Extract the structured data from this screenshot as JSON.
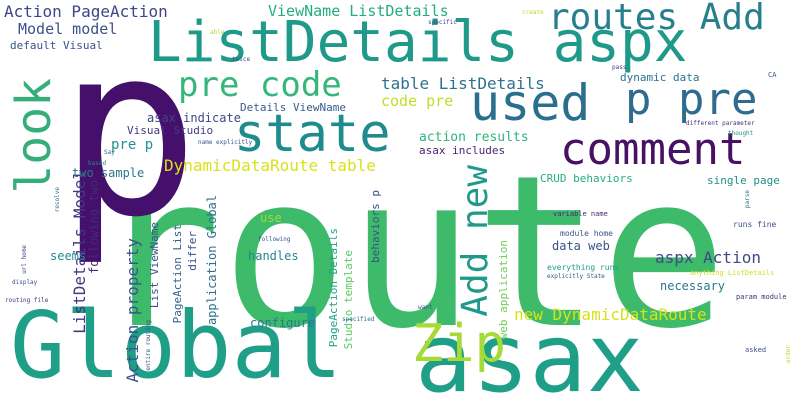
{
  "words": [
    {
      "text": "route",
      "color": "#3dbb6b"
    },
    {
      "text": "p",
      "color": "#44106b"
    },
    {
      "text": "Global",
      "color": "#1f9f88"
    },
    {
      "text": "asax",
      "color": "#1f9f88"
    },
    {
      "text": "ListDetails aspx",
      "color": "#1f9a8a"
    },
    {
      "text": "state",
      "color": "#1e8c8d"
    },
    {
      "text": "used",
      "color": "#2b6f8e"
    },
    {
      "text": "p pre",
      "color": "#2f6b8e"
    },
    {
      "text": "comment",
      "color": "#471164"
    },
    {
      "text": "routes Add",
      "color": "#277f8e"
    },
    {
      "text": "look",
      "color": "#36ae79"
    },
    {
      "text": "pre code",
      "color": "#35b779"
    },
    {
      "text": "Zip",
      "color": "#a5db36"
    },
    {
      "text": "Add new",
      "color": "#1f9a8a"
    },
    {
      "text": "Action PageAction",
      "color": "#414487"
    },
    {
      "text": "Model model",
      "color": "#3b518b"
    },
    {
      "text": "default Visual",
      "color": "#3b528b"
    },
    {
      "text": "ViewName ListDetails",
      "color": "#25ab82"
    },
    {
      "text": "table ListDetails",
      "color": "#2c728e"
    },
    {
      "text": "code pre",
      "color": "#bddf26"
    },
    {
      "text": "DynamicDataRoute table",
      "color": "#d8e219"
    },
    {
      "text": "new DynamicDataRoute",
      "color": "#d8e219"
    },
    {
      "text": "aspx Action",
      "color": "#3e4a89"
    },
    {
      "text": "ListDetails Model",
      "color": "#453781"
    },
    {
      "text": "Action property",
      "color": "#3a538b"
    },
    {
      "text": "action results",
      "color": "#2fb47c"
    },
    {
      "text": "asax includes",
      "color": "#482475"
    },
    {
      "text": "asax indicate",
      "color": "#3f4788"
    },
    {
      "text": "Visual Studio",
      "color": "#443a83"
    },
    {
      "text": "Details ViewName",
      "color": "#375b8d"
    },
    {
      "text": "pre p",
      "color": "#21918c"
    },
    {
      "text": "two sample",
      "color": "#2a788e"
    },
    {
      "text": "following two",
      "color": "#482878"
    },
    {
      "text": "List ViewName",
      "color": "#3b528b"
    },
    {
      "text": "PageAction List",
      "color": "#33638d"
    },
    {
      "text": "differ",
      "color": "#3e4c8a"
    },
    {
      "text": "application Global",
      "color": "#2d708e"
    },
    {
      "text": "handles",
      "color": "#24868e"
    },
    {
      "text": "use",
      "color": "#a0da39"
    },
    {
      "text": "seems",
      "color": "#228d8d"
    },
    {
      "text": "configure",
      "color": "#2a788e"
    },
    {
      "text": "PageAction Details",
      "color": "#20a386"
    },
    {
      "text": "Studio template",
      "color": "#5ec962"
    },
    {
      "text": "behaviors p",
      "color": "#3b528b"
    },
    {
      "text": "web application",
      "color": "#70cf57"
    },
    {
      "text": "CRUD behaviors",
      "color": "#29af7f"
    },
    {
      "text": "data web",
      "color": "#3b528b"
    },
    {
      "text": "necessary",
      "color": "#2a788e"
    },
    {
      "text": "single page",
      "color": "#21918c"
    },
    {
      "text": "dynamic data",
      "color": "#2c728e"
    },
    {
      "text": "module home",
      "color": "#3b528b"
    },
    {
      "text": "everything runs",
      "color": "#1f9e89"
    },
    {
      "text": "runs fine",
      "color": "#3b528b"
    },
    {
      "text": "variable name",
      "color": "#482475"
    },
    {
      "text": "pass",
      "color": "#453882"
    },
    {
      "text": "specific",
      "color": "#3e4989"
    },
    {
      "text": "create",
      "color": "#b5de2b"
    },
    {
      "text": "able",
      "color": "#a8db34"
    },
    {
      "text": "twice",
      "color": "#414487"
    },
    {
      "text": "name explicitly",
      "color": "#3a548c"
    },
    {
      "text": "Say",
      "color": "#2f6c8e"
    },
    {
      "text": "based",
      "color": "#25848e"
    },
    {
      "text": "resolve",
      "color": "#2c728e"
    },
    {
      "text": "url home",
      "color": "#443983"
    },
    {
      "text": "display",
      "color": "#3b528b"
    },
    {
      "text": "routing file",
      "color": "#453781"
    },
    {
      "text": "entire routing",
      "color": "#3b528b"
    },
    {
      "text": "specified",
      "color": "#2d708e"
    },
    {
      "text": "following",
      "color": "#3b528b"
    },
    {
      "text": "want",
      "color": "#3b528b"
    },
    {
      "text": "explicitly State",
      "color": "#3b528b"
    },
    {
      "text": "different parameter",
      "color": "#46327e"
    },
    {
      "text": "thought",
      "color": "#21918c"
    },
    {
      "text": "param module",
      "color": "#472d7b"
    },
    {
      "text": "anything ListDetails",
      "color": "#cde11d"
    },
    {
      "text": "asked",
      "color": "#3b528b"
    },
    {
      "text": "order",
      "color": "#b5de2b"
    },
    {
      "text": "CA",
      "color": "#3b528b"
    },
    {
      "text": "parse",
      "color": "#2c728e"
    }
  ]
}
